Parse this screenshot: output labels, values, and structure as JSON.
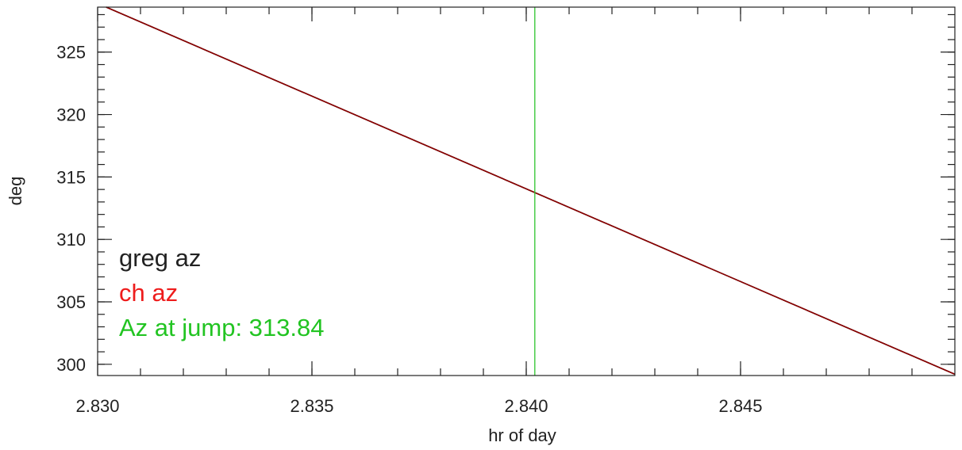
{
  "chart_data": {
    "type": "line",
    "xlabel": "hr of day",
    "ylabel": "deg",
    "xlim": [
      2.83,
      2.85
    ],
    "ylim": [
      299.1,
      328.6
    ],
    "x_ticks": [
      {
        "value": 2.83,
        "label": "2.830"
      },
      {
        "value": 2.835,
        "label": "2.835"
      },
      {
        "value": 2.84,
        "label": "2.840"
      },
      {
        "value": 2.845,
        "label": "2.845"
      }
    ],
    "y_ticks": [
      {
        "value": 300,
        "label": "300"
      },
      {
        "value": 305,
        "label": "305"
      },
      {
        "value": 310,
        "label": "310"
      },
      {
        "value": 315,
        "label": "315"
      },
      {
        "value": 320,
        "label": "320"
      },
      {
        "value": 325,
        "label": "325"
      }
    ],
    "x_minor_step": 0.001,
    "y_minor_step": 1,
    "series": [
      {
        "name": "greg az",
        "color": "#222222",
        "x": [
          2.8302,
          2.85
        ],
        "y": [
          328.6,
          299.2
        ]
      },
      {
        "name": "ch az",
        "color": "#8b0000",
        "x": [
          2.8302,
          2.85
        ],
        "y": [
          328.6,
          299.2
        ]
      }
    ],
    "vline": {
      "x": 2.8402,
      "color": "#2ec52e"
    },
    "legend": [
      {
        "text": "greg az",
        "color": "#222222"
      },
      {
        "text": "ch az",
        "color": "#ee1c1c"
      },
      {
        "text": "Az at jump: 313.84",
        "color": "#22c422"
      }
    ],
    "legend_placement": "bottom-left",
    "grid": false
  }
}
